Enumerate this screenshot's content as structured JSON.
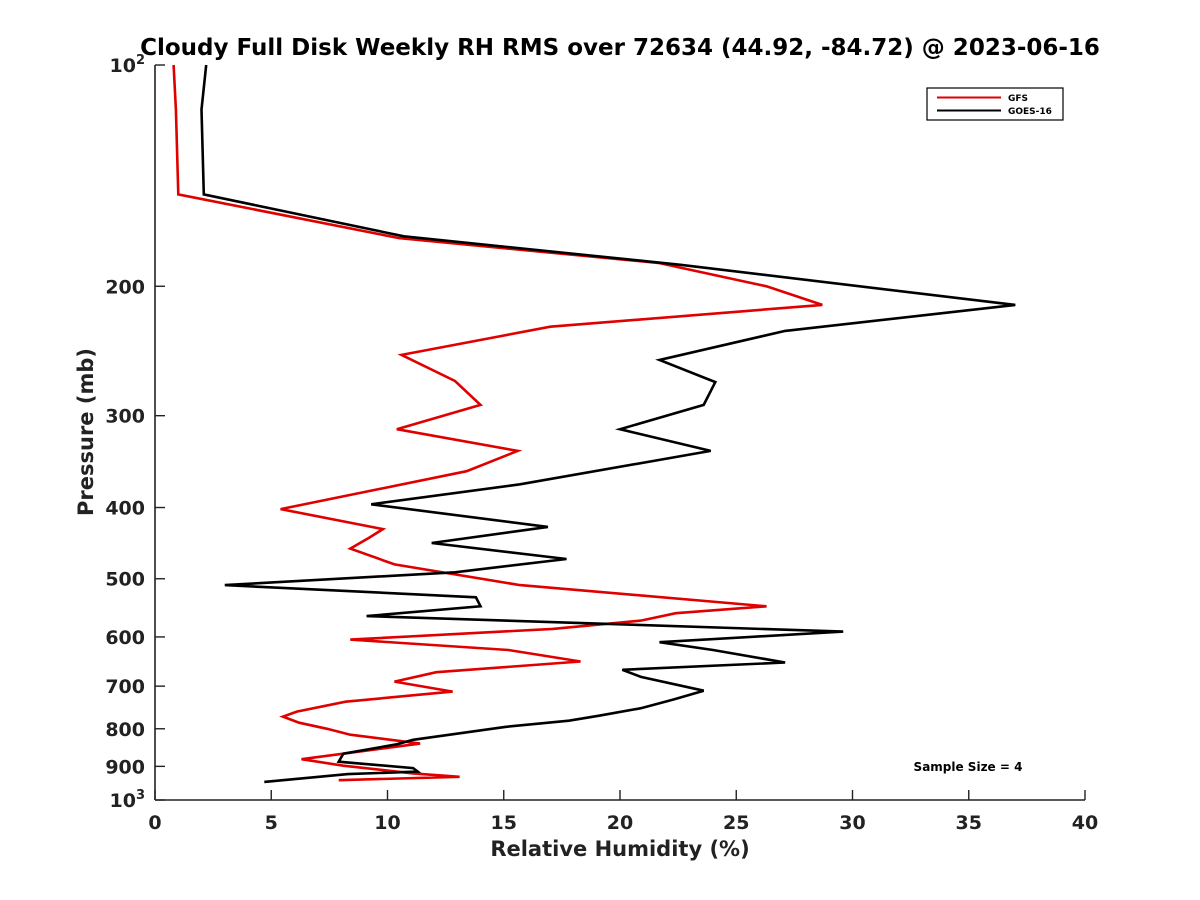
{
  "chart_data": {
    "type": "line",
    "title": "Cloudy Full Disk Weekly RH RMS over 72634 (44.92, -84.72) @ 2023-06-16",
    "xlabel": "Relative Humidity (%)",
    "ylabel": "Pressure (mb)",
    "xlim": [
      0,
      40
    ],
    "ylim": [
      100,
      1000
    ],
    "yscale": "log",
    "y_reversed": true,
    "grid": false,
    "legend_position": "top-right",
    "xticks": [
      "0",
      "5",
      "10",
      "15",
      "20",
      "25",
      "30",
      "35",
      "40"
    ],
    "xtick_values": [
      0,
      5,
      10,
      15,
      20,
      25,
      30,
      35,
      40
    ],
    "yticks": [
      {
        "value": 100,
        "base": "10",
        "exp": "2"
      },
      {
        "value": 200,
        "label": "200"
      },
      {
        "value": 300,
        "label": "300"
      },
      {
        "value": 400,
        "label": "400"
      },
      {
        "value": 500,
        "label": "500"
      },
      {
        "value": 600,
        "label": "600"
      },
      {
        "value": 700,
        "label": "700"
      },
      {
        "value": 800,
        "label": "800"
      },
      {
        "value": 900,
        "label": "900"
      },
      {
        "value": 1000,
        "base": "10",
        "exp": "3"
      }
    ],
    "annotation": "Sample Size = 4",
    "series": [
      {
        "name": "GFS",
        "color": "#e00000",
        "points": [
          [
            0.8,
            100
          ],
          [
            0.9,
            115
          ],
          [
            1.0,
            150
          ],
          [
            10.5,
            172
          ],
          [
            21.7,
            186
          ],
          [
            26.3,
            200
          ],
          [
            28.7,
            212
          ],
          [
            17.0,
            227
          ],
          [
            10.6,
            248
          ],
          [
            12.9,
            269
          ],
          [
            14.0,
            290
          ],
          [
            10.4,
            313
          ],
          [
            15.6,
            335
          ],
          [
            13.4,
            357
          ],
          [
            5.4,
            402
          ],
          [
            9.8,
            428
          ],
          [
            9.2,
            440
          ],
          [
            8.4,
            455
          ],
          [
            10.3,
            478
          ],
          [
            15.7,
            510
          ],
          [
            26.3,
            545
          ],
          [
            22.4,
            557
          ],
          [
            20.9,
            570
          ],
          [
            17.1,
            585
          ],
          [
            8.4,
            605
          ],
          [
            15.2,
            625
          ],
          [
            18.3,
            648
          ],
          [
            12.1,
            670
          ],
          [
            10.3,
            690
          ],
          [
            12.8,
            712
          ],
          [
            8.2,
            735
          ],
          [
            6.1,
            758
          ],
          [
            5.5,
            770
          ],
          [
            6.2,
            785
          ],
          [
            7.4,
            800
          ],
          [
            8.4,
            815
          ],
          [
            11.4,
            838
          ],
          [
            6.3,
            880
          ],
          [
            8.1,
            898
          ],
          [
            11.1,
            920
          ],
          [
            13.1,
            930
          ],
          [
            7.9,
            940
          ]
        ]
      },
      {
        "name": "GOES-16",
        "color": "#000000",
        "points": [
          [
            2.2,
            100
          ],
          [
            2.0,
            115
          ],
          [
            2.1,
            150
          ],
          [
            10.7,
            171
          ],
          [
            22.6,
            187
          ],
          [
            37.0,
            212
          ],
          [
            27.1,
            230
          ],
          [
            21.7,
            252
          ],
          [
            24.1,
            270
          ],
          [
            23.6,
            290
          ],
          [
            20.0,
            313
          ],
          [
            23.9,
            335
          ],
          [
            15.7,
            372
          ],
          [
            9.3,
            396
          ],
          [
            16.9,
            425
          ],
          [
            11.9,
            447
          ],
          [
            17.7,
            470
          ],
          [
            12.9,
            490
          ],
          [
            3.0,
            510
          ],
          [
            13.8,
            530
          ],
          [
            14.0,
            545
          ],
          [
            9.1,
            562
          ],
          [
            29.6,
            590
          ],
          [
            21.7,
            610
          ],
          [
            24.0,
            625
          ],
          [
            27.1,
            650
          ],
          [
            20.1,
            665
          ],
          [
            20.9,
            680
          ],
          [
            23.6,
            710
          ],
          [
            22.3,
            730
          ],
          [
            20.9,
            750
          ],
          [
            19.1,
            768
          ],
          [
            17.8,
            780
          ],
          [
            15.1,
            795
          ],
          [
            11.1,
            828
          ],
          [
            10.4,
            840
          ],
          [
            8.1,
            865
          ],
          [
            7.9,
            887
          ],
          [
            11.1,
            905
          ],
          [
            11.3,
            915
          ],
          [
            8.3,
            922
          ],
          [
            4.7,
            945
          ]
        ]
      }
    ]
  }
}
